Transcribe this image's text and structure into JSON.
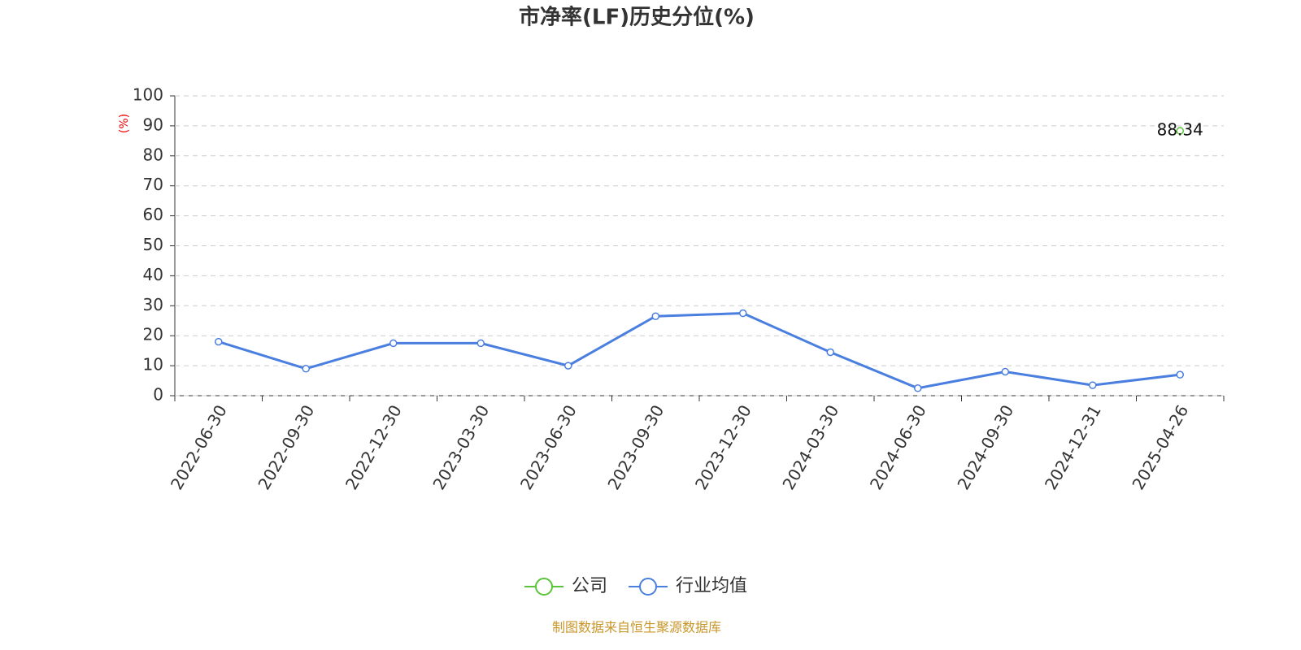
{
  "chart_data": {
    "type": "line",
    "title": "市净率(LF)历史分位(%)",
    "y_label": "(%)",
    "source": "制图数据来自恒生聚源数据库",
    "categories": [
      "2022-06-30",
      "2022-09-30",
      "2022-12-30",
      "2023-03-30",
      "2023-06-30",
      "2023-09-30",
      "2023-12-30",
      "2024-03-30",
      "2024-06-30",
      "2024-09-30",
      "2024-12-31",
      "2025-04-26"
    ],
    "series": [
      {
        "name": "公司",
        "color": "#5bc43a",
        "show_labels": true,
        "values": [
          null,
          null,
          null,
          null,
          null,
          null,
          null,
          null,
          null,
          null,
          null,
          88.34
        ]
      },
      {
        "name": "行业均值",
        "color": "#4a7fe0",
        "show_labels": false,
        "values": [
          18,
          9,
          17.5,
          17.5,
          10,
          26.5,
          27.5,
          14.5,
          2.5,
          8,
          3.5,
          7
        ]
      }
    ],
    "ylim": [
      0,
      100
    ],
    "yticks": [
      0,
      10,
      20,
      30,
      40,
      50,
      60,
      70,
      80,
      90,
      100
    ],
    "grid": true
  }
}
